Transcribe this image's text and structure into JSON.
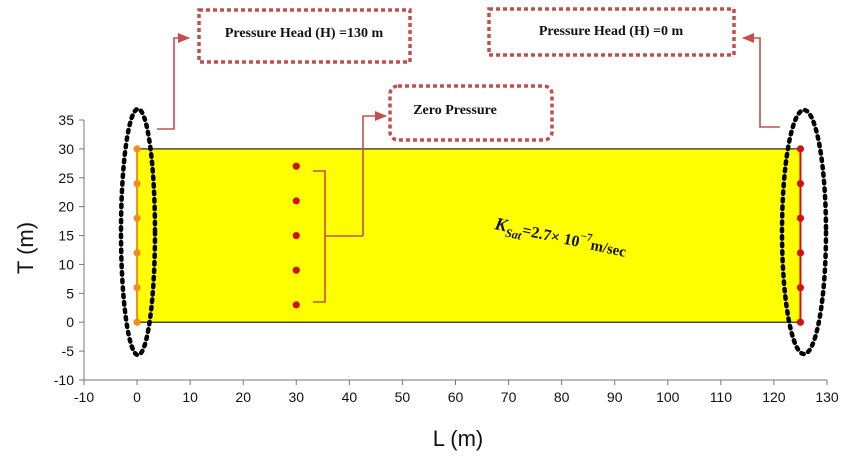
{
  "axes": {
    "xlabel": "L (m)",
    "ylabel": "T (m)",
    "x_ticks": [
      -10,
      0,
      10,
      20,
      30,
      40,
      50,
      60,
      70,
      80,
      90,
      100,
      110,
      120,
      130
    ],
    "y_ticks": [
      -10,
      -5,
      0,
      5,
      10,
      15,
      20,
      25,
      30,
      35
    ],
    "xlim": [
      -10,
      130
    ],
    "ylim": [
      -10,
      35
    ]
  },
  "domain": {
    "x_range": [
      0,
      125
    ],
    "y_range": [
      0,
      30
    ],
    "fill_color": "#ffff00",
    "border_color": "#222222"
  },
  "boundaries": {
    "left": {
      "x": 0,
      "line_color": "#f28c1e",
      "point_color": "#f28c1e",
      "points_y": [
        0,
        6,
        12,
        18,
        24,
        30
      ]
    },
    "right": {
      "x": 125,
      "line_color": "#d0101a",
      "point_color": "#d0101a",
      "points_y": [
        0,
        6,
        12,
        18,
        24,
        30
      ]
    }
  },
  "interior_points": {
    "x": 30,
    "color": "#d0101a",
    "points_y": [
      3,
      9,
      15,
      21,
      27
    ]
  },
  "annotations": {
    "left_head_label": "Pressure Head (H) =130 m",
    "right_head_label": "Pressure Head (H) =0 m",
    "zero_pressure_label": "Zero Pressure",
    "arrow_color": "#c0504d",
    "box_border_color": "#c0504d",
    "ellipse_color": "#000000"
  },
  "ksat": {
    "symbol": "K",
    "subscript": "Sat",
    "value_text": "=2.7× 10",
    "exponent": "−7",
    "unit": "m/sec"
  }
}
